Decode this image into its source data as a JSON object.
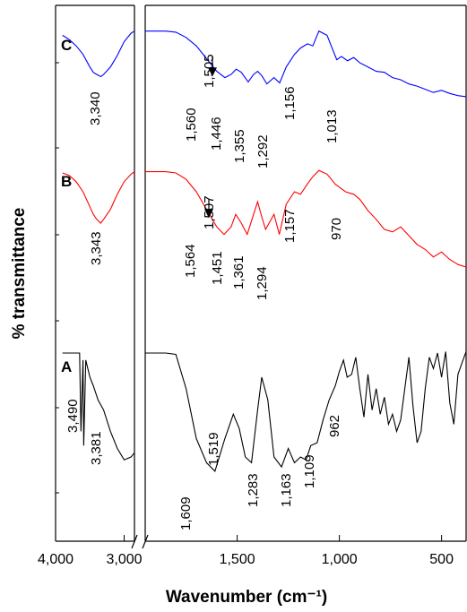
{
  "chart_data": {
    "type": "line",
    "xlabel": "Wavenumber (cm⁻¹)",
    "ylabel": "% transmittance",
    "x_axis": {
      "reversed": true,
      "broken": true,
      "left_segment_range": [
        4000,
        2850
      ],
      "right_segment_range": [
        1950,
        380
      ],
      "ticks": [
        {
          "value": 4000,
          "label": "4,000"
        },
        {
          "value": 3000,
          "label": "3,000"
        },
        {
          "value": 1500,
          "label": "1,500"
        },
        {
          "value": 1000,
          "label": "1,000"
        },
        {
          "value": 500,
          "label": "500"
        }
      ]
    },
    "grid": false,
    "series": [
      {
        "name": "C",
        "color": "#0000ff",
        "x": [
          3900,
          3800,
          3700,
          3600,
          3500,
          3450,
          3400,
          3340,
          3300,
          3200,
          3100,
          3000,
          2900,
          2850,
          1950,
          1850,
          1800,
          1750,
          1700,
          1650,
          1600,
          1560,
          1530,
          1505,
          1480,
          1446,
          1420,
          1400,
          1380,
          1355,
          1320,
          1292,
          1260,
          1220,
          1190,
          1156,
          1130,
          1100,
          1060,
          1040,
          1013,
          990,
          960,
          930,
          900,
          860,
          820,
          780,
          740,
          700,
          660,
          620,
          580,
          540,
          500,
          460,
          420,
          380
        ],
        "y": [
          0.92,
          0.88,
          0.82,
          0.74,
          0.62,
          0.57,
          0.55,
          0.53,
          0.55,
          0.62,
          0.73,
          0.86,
          0.94,
          0.96,
          0.96,
          0.96,
          0.95,
          0.9,
          0.82,
          0.7,
          0.58,
          0.52,
          0.55,
          0.6,
          0.57,
          0.48,
          0.55,
          0.58,
          0.54,
          0.46,
          0.52,
          0.47,
          0.62,
          0.74,
          0.8,
          0.84,
          0.82,
          0.96,
          0.92,
          0.82,
          0.69,
          0.72,
          0.68,
          0.71,
          0.66,
          0.62,
          0.58,
          0.57,
          0.52,
          0.5,
          0.46,
          0.44,
          0.41,
          0.38,
          0.4,
          0.37,
          0.35,
          0.34
        ]
      },
      {
        "name": "B",
        "color": "#ff0000",
        "x": [
          3900,
          3800,
          3700,
          3600,
          3500,
          3450,
          3400,
          3343,
          3300,
          3200,
          3100,
          3000,
          2900,
          2850,
          1950,
          1850,
          1800,
          1750,
          1700,
          1650,
          1600,
          1564,
          1530,
          1507,
          1480,
          1451,
          1420,
          1400,
          1380,
          1361,
          1320,
          1294,
          1260,
          1220,
          1190,
          1157,
          1130,
          1100,
          1060,
          1020,
          970,
          930,
          900,
          860,
          820,
          780,
          740,
          700,
          660,
          620,
          580,
          540,
          500,
          460,
          420,
          380
        ],
        "y": [
          0.95,
          0.93,
          0.88,
          0.8,
          0.68,
          0.62,
          0.58,
          0.55,
          0.58,
          0.66,
          0.78,
          0.88,
          0.94,
          0.96,
          0.96,
          0.96,
          0.95,
          0.9,
          0.8,
          0.66,
          0.52,
          0.46,
          0.52,
          0.62,
          0.55,
          0.46,
          0.62,
          0.72,
          0.6,
          0.5,
          0.62,
          0.46,
          0.7,
          0.8,
          0.78,
          0.86,
          0.92,
          0.97,
          0.94,
          0.86,
          0.8,
          0.78,
          0.74,
          0.65,
          0.58,
          0.5,
          0.48,
          0.52,
          0.45,
          0.38,
          0.34,
          0.28,
          0.32,
          0.26,
          0.22,
          0.2
        ]
      },
      {
        "name": "A",
        "color": "#000000",
        "x": [
          3900,
          3800,
          3700,
          3650,
          3630,
          3600,
          3590,
          3560,
          3500,
          3450,
          3381,
          3300,
          3200,
          3100,
          3000,
          2900,
          2850,
          1950,
          1850,
          1800,
          1750,
          1700,
          1650,
          1609,
          1560,
          1519,
          1490,
          1460,
          1430,
          1400,
          1380,
          1350,
          1320,
          1283,
          1250,
          1220,
          1190,
          1163,
          1140,
          1109,
          1080,
          1050,
          1020,
          1000,
          980,
          962,
          940,
          920,
          900,
          880,
          860,
          840,
          820,
          800,
          780,
          760,
          740,
          720,
          700,
          680,
          660,
          640,
          620,
          600,
          580,
          560,
          540,
          520,
          500,
          480,
          460,
          440,
          420,
          400,
          380
        ],
        "y": [
          0.95,
          0.95,
          0.95,
          0.95,
          0.4,
          0.9,
          0.3,
          0.9,
          0.78,
          0.72,
          0.62,
          0.55,
          0.4,
          0.28,
          0.2,
          0.22,
          0.25,
          0.95,
          0.95,
          0.94,
          0.7,
          0.35,
          0.18,
          0.12,
          0.35,
          0.52,
          0.42,
          0.22,
          0.18,
          0.55,
          0.78,
          0.62,
          0.22,
          0.15,
          0.28,
          0.18,
          0.22,
          0.2,
          0.3,
          0.32,
          0.48,
          0.62,
          0.72,
          0.82,
          0.9,
          0.78,
          0.8,
          0.92,
          0.7,
          0.5,
          0.8,
          0.55,
          0.7,
          0.52,
          0.64,
          0.45,
          0.52,
          0.4,
          0.48,
          0.7,
          0.92,
          0.58,
          0.32,
          0.4,
          0.7,
          0.92,
          0.84,
          0.95,
          0.78,
          0.96,
          0.6,
          0.45,
          0.8,
          0.88,
          0.96
        ]
      }
    ],
    "trace_labels": [
      "C",
      "B",
      "A"
    ],
    "peak_labels": {
      "C": [
        "3,340",
        "1,560",
        "1,505",
        "1,446",
        "1,355",
        "1,292",
        "1,156",
        "1,013"
      ],
      "B": [
        "3,343",
        "1,564",
        "1,507",
        "1,451",
        "1,361",
        "1,294",
        "1,157",
        "970"
      ],
      "A": [
        "3,490",
        "3,381",
        "1,609",
        "1,519",
        "1,283",
        "1,163",
        "1,109",
        "962"
      ]
    }
  }
}
